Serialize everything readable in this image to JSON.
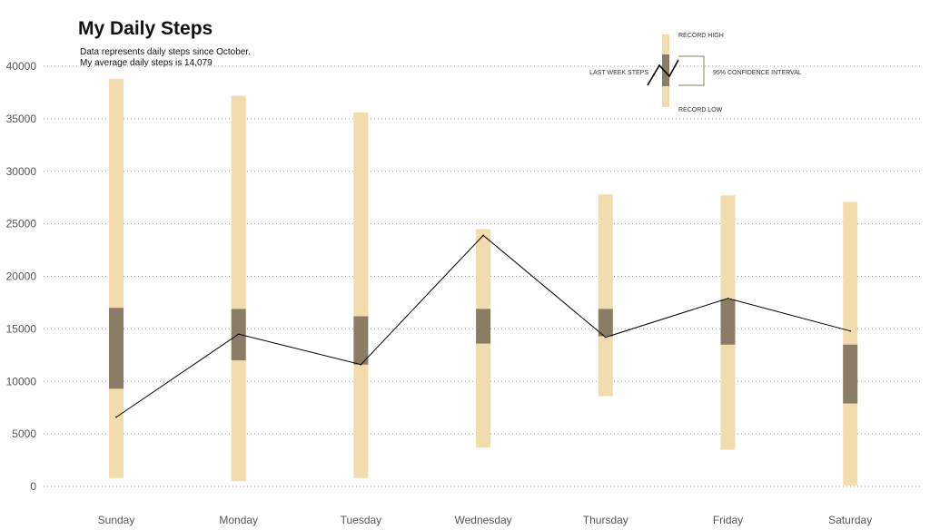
{
  "chart_data": {
    "type": "bar",
    "title": "My Daily Steps",
    "subtitle_lines": [
      "Data represents daily steps since October.",
      "My average daily steps is 14,079"
    ],
    "categories": [
      "Sunday",
      "Monday",
      "Tuesday",
      "Wednesday",
      "Thursday",
      "Friday",
      "Saturday"
    ],
    "record_range": [
      [
        800,
        38800
      ],
      [
        500,
        37200
      ],
      [
        800,
        35600
      ],
      [
        3700,
        24500
      ],
      [
        8600,
        27800
      ],
      [
        3500,
        27700
      ],
      [
        100,
        27100
      ]
    ],
    "confidence_interval": [
      [
        9300,
        17000
      ],
      [
        12000,
        16900
      ],
      [
        11600,
        16200
      ],
      [
        13600,
        16900
      ],
      [
        14300,
        16900
      ],
      [
        13500,
        17800
      ],
      [
        7900,
        13500
      ]
    ],
    "last_week": [
      6600,
      14500,
      11600,
      23900,
      14200,
      17900,
      14800
    ],
    "yticks": [
      0,
      5000,
      10000,
      15000,
      20000,
      25000,
      30000,
      35000,
      40000
    ],
    "ylim": [
      0,
      40000
    ],
    "grid": "horizontal dotted",
    "colors": {
      "record": "#f2dcae",
      "ci": "#8b7d65",
      "line": "#000000",
      "grid": "#999999",
      "tick": "#555555"
    },
    "legend": {
      "record_high": "RECORD HIGH",
      "record_low": "RECORD LOW",
      "last_week": "LAST WEEK STEPS",
      "ci": "95% CONFIDENCE INTERVAL",
      "placement": "top-right"
    }
  }
}
